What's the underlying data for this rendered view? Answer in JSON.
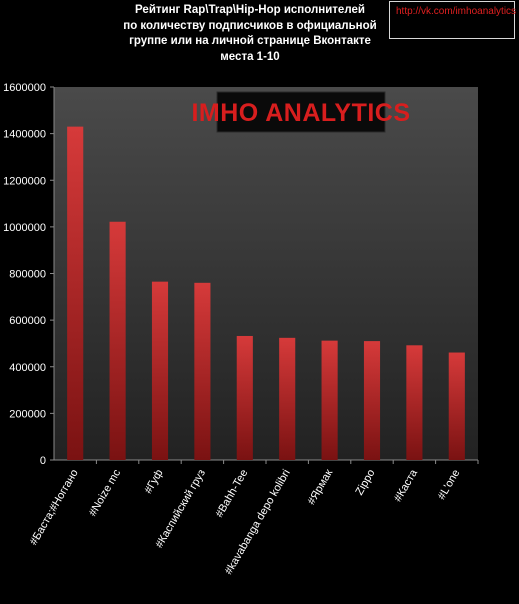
{
  "chart_data": {
    "type": "bar",
    "title_lines": [
      "Рейтинг  Rap\\Trap\\Hip-Hop исполнителей",
      "по количеству подписчиков в официальной",
      "группе или на личной странице Вконтакте",
      "места 1-10"
    ],
    "categories": [
      "#Баста;#Ноггано",
      "#Noize mc",
      "#Гуф",
      "#Каспийский груз",
      "#Bahh-Tee",
      "#kavabanga depo kolibri",
      "#Ярмак",
      "Zippo",
      "#Каста",
      "#L'one"
    ],
    "values": [
      1430000,
      1022000,
      765000,
      760000,
      532000,
      524000,
      512000,
      510000,
      492000,
      461000
    ],
    "yticks": [
      0,
      200000,
      400000,
      600000,
      800000,
      1000000,
      1200000,
      1400000,
      1600000
    ],
    "ylim": [
      0,
      1600000
    ],
    "xlabel": "",
    "ylabel": "",
    "grid": false,
    "legend": "none",
    "bar_color": "#d63a3a",
    "bar_color_dark": "#7a1212",
    "plot_bg_top": "#4a4a4a",
    "plot_bg_bottom": "#222222"
  },
  "watermark": {
    "text": "IMHO ANALYTICS",
    "color": "#d81e1e"
  },
  "link": {
    "text": "http://vk.com/imhoanalytics",
    "color": "#e02020"
  }
}
